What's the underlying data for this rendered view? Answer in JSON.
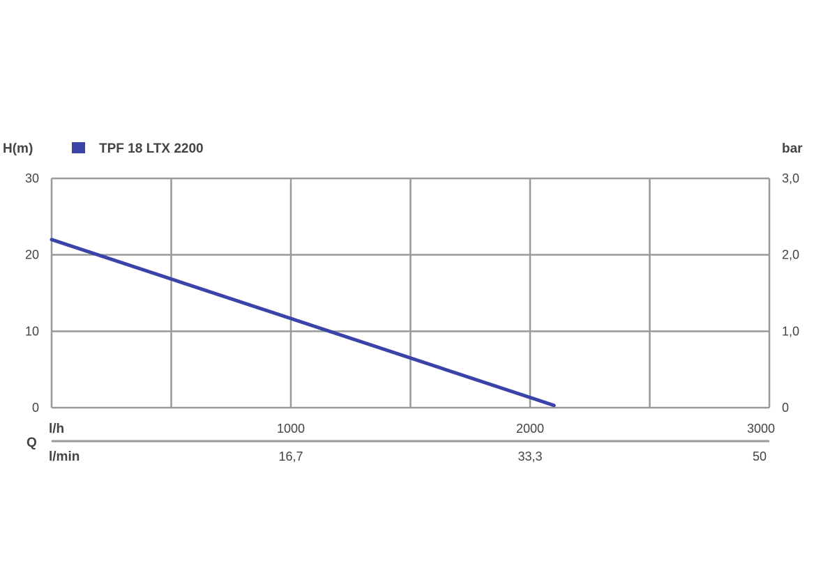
{
  "chart_data": {
    "type": "line",
    "y_label_left": "H(m)",
    "y_label_right": "bar",
    "x_label": "Q",
    "x_unit_top": "l/h",
    "x_unit_bottom": "l/min",
    "xlim": [
      0,
      3000
    ],
    "ylim": [
      0,
      30
    ],
    "grid": true,
    "legend_placement": "top-left",
    "y_ticks": [
      "0",
      "10",
      "20",
      "30"
    ],
    "y_ticks_right": [
      "0",
      "1,0",
      "2,0",
      "3,0"
    ],
    "x_ticks_top": [
      "1000",
      "2000",
      "3000"
    ],
    "x_ticks_bottom": [
      "16,7",
      "33,3",
      "50"
    ],
    "series": [
      {
        "name": "TPF 18 LTX 2200",
        "color": "#3b43a8",
        "x": [
          0,
          2100
        ],
        "y": [
          22,
          0.3
        ]
      }
    ],
    "colors": {
      "grid": "#999999",
      "text": "#444444"
    }
  }
}
